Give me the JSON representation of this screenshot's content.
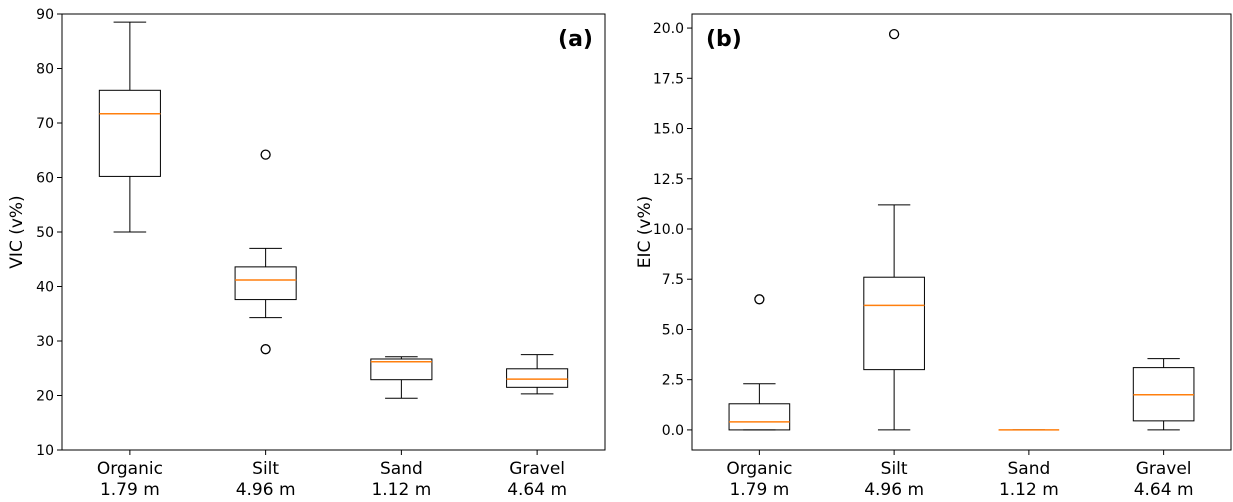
{
  "chart_data": [
    {
      "type": "box",
      "ylabel": "VIC (v%)",
      "panel_label": "(a)",
      "categories": [
        "Organic",
        "Silt",
        "Sand",
        "Gravel"
      ],
      "category_sublabels": [
        "1.79 m",
        "4.96 m",
        "1.12 m",
        "4.64 m"
      ],
      "ylim": [
        10,
        90
      ],
      "yticks": [
        10,
        20,
        30,
        40,
        50,
        60,
        70,
        80,
        90
      ],
      "box_color": "#000000",
      "median_color": "#ff7f0e",
      "boxes": [
        {
          "whislo": 50,
          "q1": 60.2,
          "med": 71.7,
          "q3": 76,
          "whishi": 88.5,
          "fliers": []
        },
        {
          "whislo": 34.3,
          "q1": 37.6,
          "med": 41.2,
          "q3": 43.6,
          "whishi": 47,
          "fliers": [
            64.2,
            28.5
          ]
        },
        {
          "whislo": 19.5,
          "q1": 22.9,
          "med": 26.2,
          "q3": 26.7,
          "whishi": 27.1,
          "fliers": []
        },
        {
          "whislo": 20.3,
          "q1": 21.5,
          "med": 23,
          "q3": 24.9,
          "whishi": 27.5,
          "fliers": []
        }
      ]
    },
    {
      "type": "box",
      "ylabel": "EIC (v%)",
      "panel_label": "(b)",
      "categories": [
        "Organic",
        "Silt",
        "Sand",
        "Gravel"
      ],
      "category_sublabels": [
        "1.79 m",
        "4.96 m",
        "1.12 m",
        "4.64 m"
      ],
      "ylim": [
        -1,
        20.7
      ],
      "yticks": [
        {
          "value": 0,
          "label": "0.0"
        },
        {
          "value": 2.5,
          "label": "2.5"
        },
        {
          "value": 5,
          "label": "5.0"
        },
        {
          "value": 7.5,
          "label": "7.5"
        },
        {
          "value": 10,
          "label": "10.0"
        },
        {
          "value": 12.5,
          "label": "12.5"
        },
        {
          "value": 15,
          "label": "15.0"
        },
        {
          "value": 17.5,
          "label": "17.5"
        },
        {
          "value": 20,
          "label": "20.0"
        }
      ],
      "box_color": "#000000",
      "median_color": "#ff7f0e",
      "boxes": [
        {
          "whislo": 0,
          "q1": 0,
          "med": 0.4,
          "q3": 1.3,
          "whishi": 2.3,
          "fliers": [
            6.5
          ]
        },
        {
          "whislo": 0,
          "q1": 3,
          "med": 6.2,
          "q3": 7.6,
          "whishi": 11.2,
          "fliers": [
            19.7
          ]
        },
        {
          "whislo": 0,
          "q1": 0,
          "med": 0,
          "q3": 0,
          "whishi": 0,
          "fliers": []
        },
        {
          "whislo": 0,
          "q1": 0.45,
          "med": 1.75,
          "q3": 3.1,
          "whishi": 3.55,
          "fliers": []
        }
      ]
    }
  ]
}
